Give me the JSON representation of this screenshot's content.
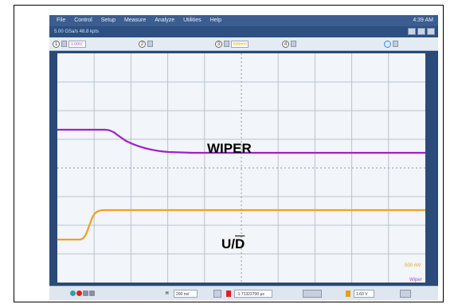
{
  "menu": {
    "items": [
      "File",
      "Control",
      "Setup",
      "Measure",
      "Analyze",
      "Utilities",
      "Help"
    ],
    "clock": "4:39 AM"
  },
  "acquisition": {
    "rate": "5.00 GSa/s 48.8 kpts"
  },
  "channels": [
    {
      "num": "1",
      "scale": "1.00V/",
      "color": "#a050c0"
    },
    {
      "num": "2",
      "scale": ""
    },
    {
      "num": "3",
      "scale": "500mV/",
      "color": "#e0a020"
    },
    {
      "num": "4",
      "scale": ""
    }
  ],
  "labels": {
    "wiper": "WIPER",
    "ud": "U/D",
    "ud_prefix": "U/",
    "ud_bar": "D"
  },
  "side": {
    "ch3": "500 mV",
    "ch1": "Wiper"
  },
  "bottom": {
    "h_label": "H",
    "timebase": "200 ns/",
    "position": "-1.71322700 µs",
    "trig_level": "1.60 V"
  },
  "colors": {
    "wiper": "#a020c8",
    "ud": "#f0a020",
    "background": "#f2f5f9"
  }
}
